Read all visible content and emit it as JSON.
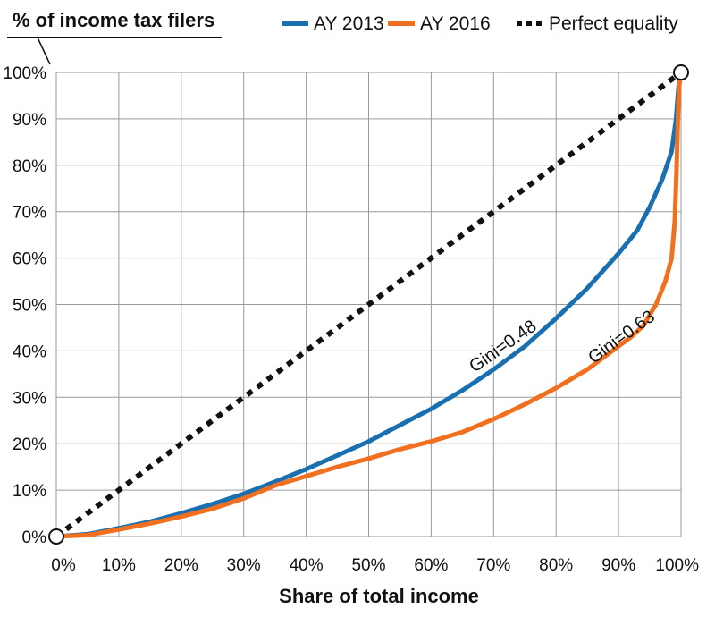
{
  "chart_data": {
    "type": "line",
    "ylabel": "% of income tax filers",
    "xlabel": "Share of total income",
    "xlim": [
      0,
      100
    ],
    "ylim": [
      0,
      100
    ],
    "x_ticks": [
      "0%",
      "10%",
      "20%",
      "30%",
      "40%",
      "50%",
      "60%",
      "70%",
      "80%",
      "90%",
      "100%"
    ],
    "y_ticks": [
      "0%",
      "10%",
      "20%",
      "30%",
      "40%",
      "50%",
      "60%",
      "70%",
      "80%",
      "90%",
      "100%"
    ],
    "grid": true,
    "legend_position": "top",
    "series": [
      {
        "name": "AY 2013",
        "color": "#1a6fb0",
        "style": "solid",
        "points": [
          [
            0,
            0
          ],
          [
            5,
            0.5
          ],
          [
            10,
            1.8
          ],
          [
            15,
            3.2
          ],
          [
            20,
            5
          ],
          [
            25,
            7
          ],
          [
            30,
            9.2
          ],
          [
            35,
            11.8
          ],
          [
            40,
            14.5
          ],
          [
            45,
            17.5
          ],
          [
            50,
            20.5
          ],
          [
            55,
            24
          ],
          [
            60,
            27.5
          ],
          [
            65,
            31.5
          ],
          [
            70,
            36
          ],
          [
            75,
            41
          ],
          [
            80,
            47
          ],
          [
            85,
            53.5
          ],
          [
            90,
            61
          ],
          [
            93,
            66
          ],
          [
            95,
            71
          ],
          [
            97,
            77
          ],
          [
            98.5,
            83
          ],
          [
            99.2,
            90
          ],
          [
            99.6,
            97
          ],
          [
            100,
            100
          ]
        ]
      },
      {
        "name": "AY 2016",
        "color": "#f07020",
        "style": "solid",
        "points": [
          [
            0,
            0
          ],
          [
            5,
            0.3
          ],
          [
            10,
            1.5
          ],
          [
            15,
            2.8
          ],
          [
            20,
            4.3
          ],
          [
            25,
            6
          ],
          [
            30,
            8.2
          ],
          [
            35,
            11
          ],
          [
            40,
            13
          ],
          [
            45,
            15
          ],
          [
            50,
            16.8
          ],
          [
            55,
            18.8
          ],
          [
            60,
            20.5
          ],
          [
            65,
            22.5
          ],
          [
            70,
            25.3
          ],
          [
            75,
            28.5
          ],
          [
            80,
            32
          ],
          [
            85,
            36
          ],
          [
            90,
            41
          ],
          [
            92,
            43
          ],
          [
            94,
            45.5
          ],
          [
            96,
            50
          ],
          [
            97.5,
            55
          ],
          [
            98.5,
            60
          ],
          [
            99,
            68
          ],
          [
            99.3,
            80
          ],
          [
            99.5,
            90
          ],
          [
            99.7,
            97
          ],
          [
            100,
            100
          ]
        ]
      },
      {
        "name": "Perfect equality",
        "color": "#111111",
        "style": "dotted",
        "points": [
          [
            0,
            0
          ],
          [
            100,
            100
          ]
        ]
      }
    ],
    "annotations": [
      {
        "text": "Gini=0.48",
        "x": 72,
        "y": 40
      },
      {
        "text": "Gini=0.63",
        "x": 91,
        "y": 42
      }
    ]
  }
}
